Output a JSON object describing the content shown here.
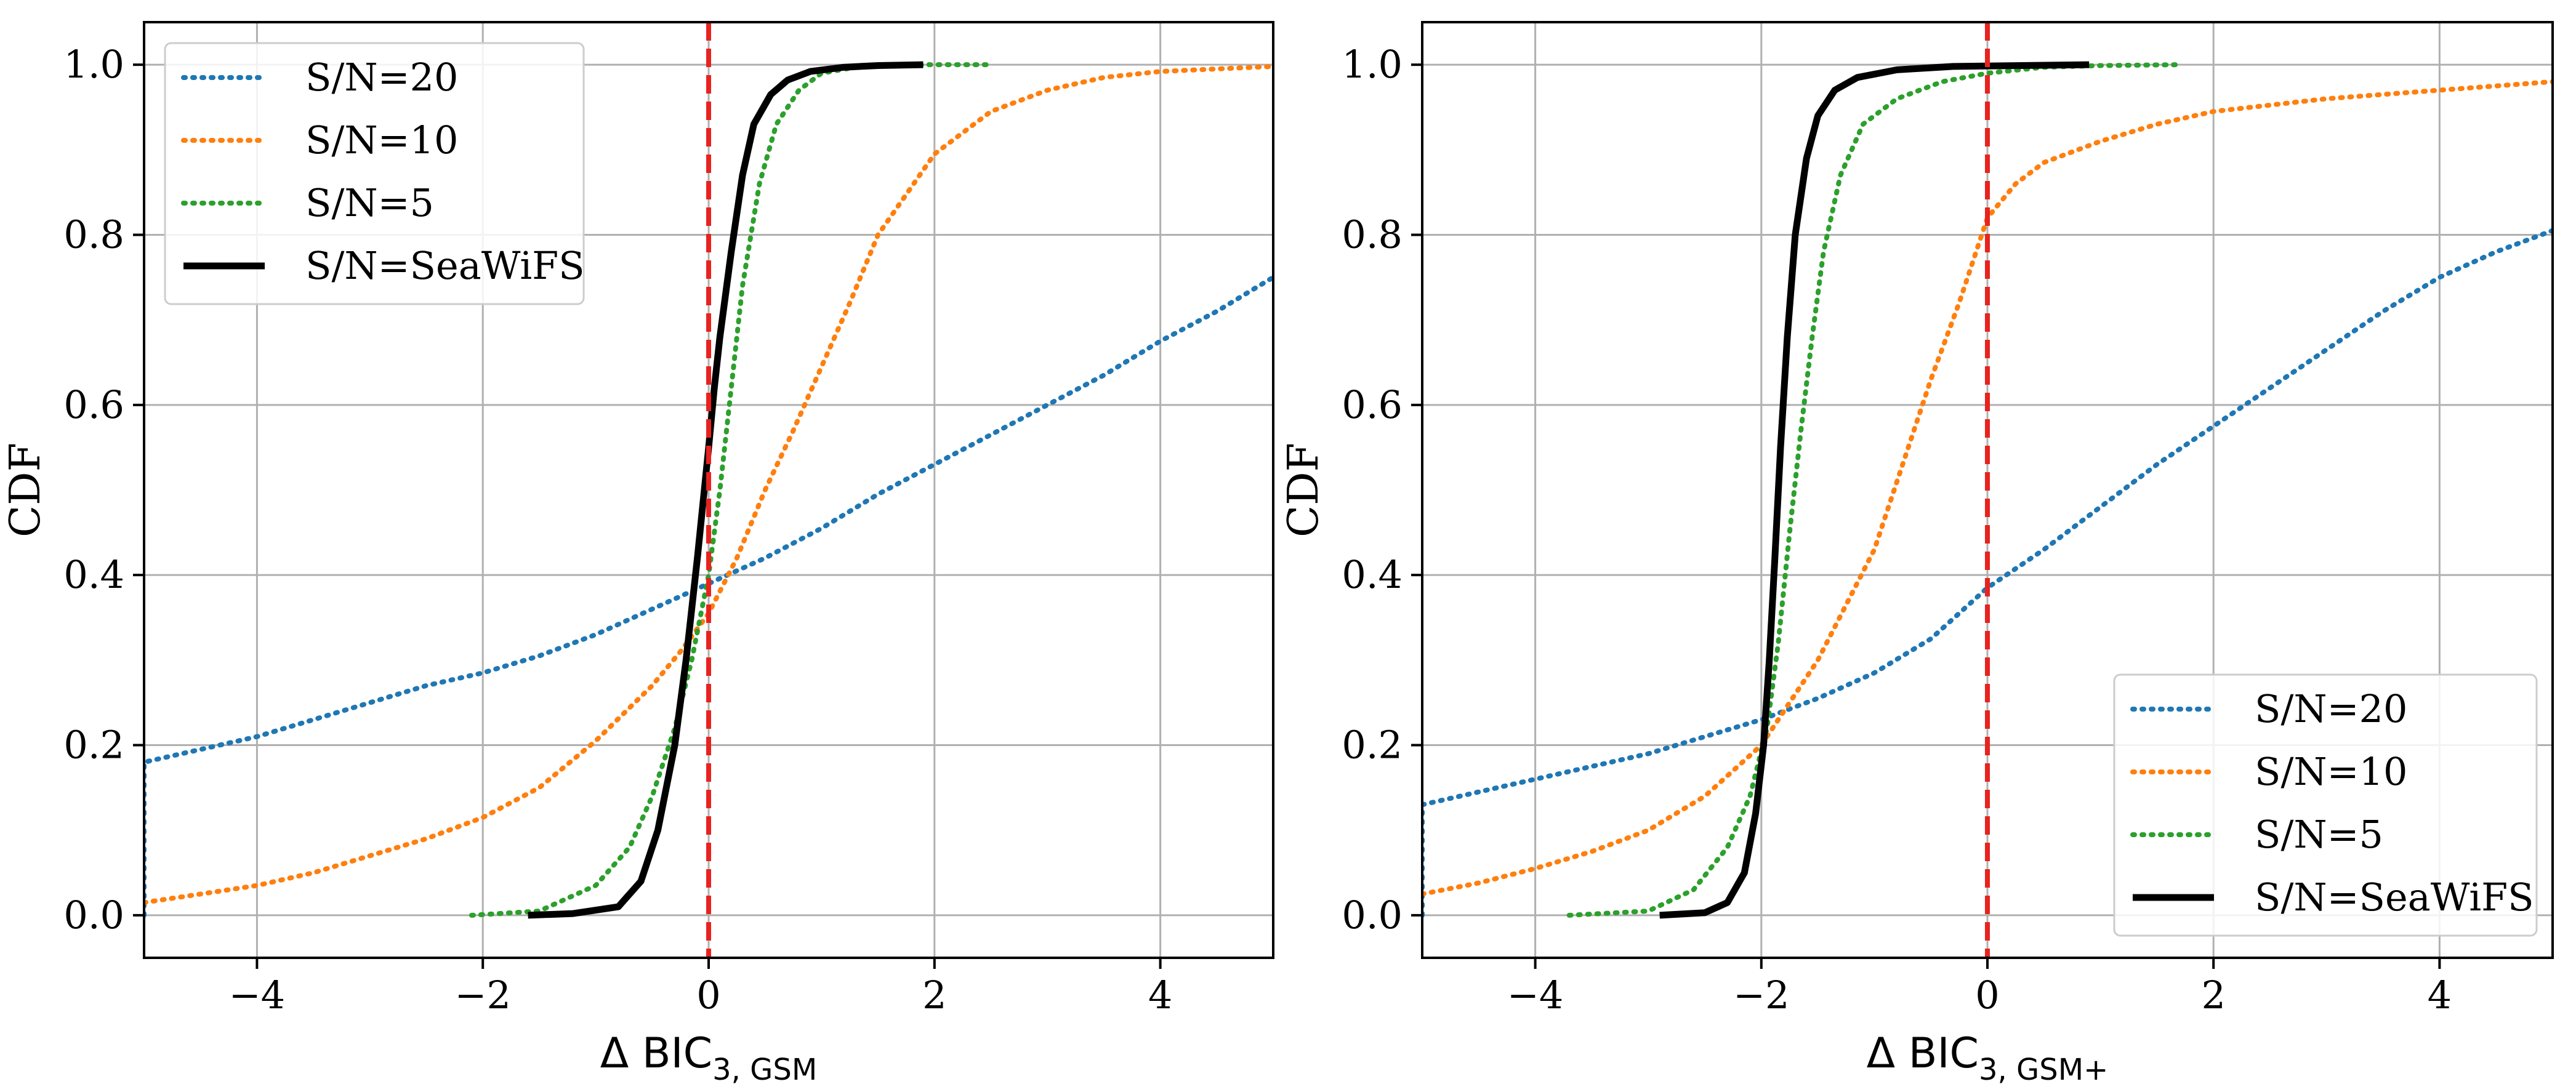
{
  "chart_data": [
    {
      "type": "line",
      "ylabel": "CDF",
      "xlabel_main": "Δ BIC",
      "xlabel_sub": "3, GSM",
      "xlim": [
        -5,
        5
      ],
      "ylim": [
        -0.05,
        1.05
      ],
      "x_ticks": [
        -4,
        -2,
        0,
        2,
        4
      ],
      "x_tick_labels": [
        "−4",
        "−2",
        "0",
        "2",
        "4"
      ],
      "y_ticks": [
        0.0,
        0.2,
        0.4,
        0.6,
        0.8,
        1.0
      ],
      "y_tick_labels": [
        "0.0",
        "0.2",
        "0.4",
        "0.6",
        "0.8",
        "1.0"
      ],
      "grid": true,
      "legend_position": "upper-left",
      "vline": {
        "x": 0,
        "color": "#e8231f",
        "style": "dashed"
      },
      "series": [
        {
          "name": "S/N=20",
          "color": "#1f77b4",
          "style": "dotted",
          "points": [
            [
              -5,
              0.0
            ],
            [
              -5,
              0.18
            ],
            [
              -4.5,
              0.195
            ],
            [
              -4,
              0.21
            ],
            [
              -3.5,
              0.23
            ],
            [
              -3,
              0.25
            ],
            [
              -2.5,
              0.27
            ],
            [
              -2,
              0.285
            ],
            [
              -1.5,
              0.305
            ],
            [
              -1,
              0.33
            ],
            [
              -0.5,
              0.36
            ],
            [
              0,
              0.39
            ],
            [
              0.5,
              0.42
            ],
            [
              1,
              0.455
            ],
            [
              1.5,
              0.495
            ],
            [
              2,
              0.53
            ],
            [
              2.5,
              0.565
            ],
            [
              3,
              0.6
            ],
            [
              3.5,
              0.635
            ],
            [
              4,
              0.675
            ],
            [
              4.5,
              0.71
            ],
            [
              5,
              0.75
            ]
          ]
        },
        {
          "name": "S/N=10",
          "color": "#ff7f0e",
          "style": "dotted",
          "points": [
            [
              -5,
              0.015
            ],
            [
              -4.5,
              0.025
            ],
            [
              -4,
              0.035
            ],
            [
              -3.5,
              0.05
            ],
            [
              -3,
              0.07
            ],
            [
              -2.5,
              0.09
            ],
            [
              -2,
              0.115
            ],
            [
              -1.5,
              0.15
            ],
            [
              -1,
              0.205
            ],
            [
              -0.5,
              0.27
            ],
            [
              -0.25,
              0.31
            ],
            [
              0,
              0.355
            ],
            [
              0.25,
              0.42
            ],
            [
              0.5,
              0.5
            ],
            [
              0.75,
              0.57
            ],
            [
              1,
              0.645
            ],
            [
              1.25,
              0.72
            ],
            [
              1.5,
              0.8
            ],
            [
              2,
              0.895
            ],
            [
              2.5,
              0.945
            ],
            [
              3,
              0.97
            ],
            [
              3.5,
              0.985
            ],
            [
              4,
              0.992
            ],
            [
              5,
              0.998
            ]
          ]
        },
        {
          "name": "S/N=5",
          "color": "#2ca02c",
          "style": "dotted",
          "points": [
            [
              -2.1,
              0.0
            ],
            [
              -1.5,
              0.005
            ],
            [
              -1.0,
              0.035
            ],
            [
              -0.7,
              0.08
            ],
            [
              -0.5,
              0.14
            ],
            [
              -0.3,
              0.22
            ],
            [
              -0.15,
              0.3
            ],
            [
              0,
              0.4
            ],
            [
              0.1,
              0.5
            ],
            [
              0.2,
              0.62
            ],
            [
              0.3,
              0.74
            ],
            [
              0.45,
              0.86
            ],
            [
              0.6,
              0.93
            ],
            [
              0.8,
              0.97
            ],
            [
              1.0,
              0.99
            ],
            [
              1.3,
              0.997
            ],
            [
              1.9,
              1.0
            ],
            [
              2.5,
              1.0
            ]
          ]
        },
        {
          "name": "S/N=SeaWiFS",
          "color": "#000000",
          "style": "solid",
          "points": [
            [
              -1.6,
              0.0
            ],
            [
              -1.2,
              0.002
            ],
            [
              -0.8,
              0.01
            ],
            [
              -0.6,
              0.04
            ],
            [
              -0.45,
              0.1
            ],
            [
              -0.3,
              0.2
            ],
            [
              -0.2,
              0.3
            ],
            [
              -0.1,
              0.42
            ],
            [
              0,
              0.55
            ],
            [
              0.05,
              0.62
            ],
            [
              0.1,
              0.68
            ],
            [
              0.2,
              0.78
            ],
            [
              0.3,
              0.87
            ],
            [
              0.4,
              0.93
            ],
            [
              0.55,
              0.965
            ],
            [
              0.7,
              0.982
            ],
            [
              0.9,
              0.992
            ],
            [
              1.2,
              0.997
            ],
            [
              1.5,
              0.999
            ],
            [
              1.9,
              1.0
            ]
          ]
        }
      ]
    },
    {
      "type": "line",
      "ylabel": "CDF",
      "xlabel_main": "Δ BIC",
      "xlabel_sub": "3, GSM+",
      "xlim": [
        -5,
        5
      ],
      "ylim": [
        -0.05,
        1.05
      ],
      "x_ticks": [
        -4,
        -2,
        0,
        2,
        4
      ],
      "x_tick_labels": [
        "−4",
        "−2",
        "0",
        "2",
        "4"
      ],
      "y_ticks": [
        0.0,
        0.2,
        0.4,
        0.6,
        0.8,
        1.0
      ],
      "y_tick_labels": [
        "0.0",
        "0.2",
        "0.4",
        "0.6",
        "0.8",
        "1.0"
      ],
      "grid": true,
      "legend_position": "lower-right",
      "vline": {
        "x": 0,
        "color": "#e8231f",
        "style": "dashed"
      },
      "series": [
        {
          "name": "S/N=20",
          "color": "#1f77b4",
          "style": "dotted",
          "points": [
            [
              -5,
              0.0
            ],
            [
              -5,
              0.13
            ],
            [
              -4.5,
              0.145
            ],
            [
              -4,
              0.16
            ],
            [
              -3.5,
              0.175
            ],
            [
              -3,
              0.19
            ],
            [
              -2.5,
              0.21
            ],
            [
              -2,
              0.23
            ],
            [
              -1.5,
              0.255
            ],
            [
              -1,
              0.285
            ],
            [
              -0.5,
              0.325
            ],
            [
              0,
              0.385
            ],
            [
              0.5,
              0.43
            ],
            [
              1,
              0.48
            ],
            [
              1.5,
              0.53
            ],
            [
              2,
              0.575
            ],
            [
              2.5,
              0.62
            ],
            [
              3,
              0.665
            ],
            [
              3.5,
              0.71
            ],
            [
              4,
              0.75
            ],
            [
              4.5,
              0.78
            ],
            [
              5,
              0.805
            ]
          ]
        },
        {
          "name": "S/N=10",
          "color": "#ff7f0e",
          "style": "dotted",
          "points": [
            [
              -5,
              0.025
            ],
            [
              -4.5,
              0.038
            ],
            [
              -4,
              0.055
            ],
            [
              -3.5,
              0.075
            ],
            [
              -3,
              0.1
            ],
            [
              -2.5,
              0.14
            ],
            [
              -2,
              0.2
            ],
            [
              -1.5,
              0.3
            ],
            [
              -1,
              0.43
            ],
            [
              -0.75,
              0.53
            ],
            [
              -0.5,
              0.63
            ],
            [
              -0.25,
              0.72
            ],
            [
              0,
              0.82
            ],
            [
              0.25,
              0.86
            ],
            [
              0.5,
              0.885
            ],
            [
              1,
              0.91
            ],
            [
              1.5,
              0.93
            ],
            [
              2,
              0.945
            ],
            [
              3,
              0.96
            ],
            [
              4,
              0.97
            ],
            [
              5,
              0.98
            ]
          ]
        },
        {
          "name": "S/N=5",
          "color": "#2ca02c",
          "style": "dotted",
          "points": [
            [
              -3.7,
              0.0
            ],
            [
              -3.0,
              0.005
            ],
            [
              -2.6,
              0.03
            ],
            [
              -2.3,
              0.08
            ],
            [
              -2.1,
              0.14
            ],
            [
              -1.95,
              0.22
            ],
            [
              -1.85,
              0.32
            ],
            [
              -1.75,
              0.45
            ],
            [
              -1.65,
              0.57
            ],
            [
              -1.55,
              0.68
            ],
            [
              -1.45,
              0.78
            ],
            [
              -1.3,
              0.87
            ],
            [
              -1.1,
              0.93
            ],
            [
              -0.8,
              0.96
            ],
            [
              -0.4,
              0.98
            ],
            [
              0,
              0.99
            ],
            [
              0.5,
              0.997
            ],
            [
              1.0,
              0.999
            ],
            [
              1.7,
              1.0
            ]
          ]
        },
        {
          "name": "S/N=SeaWiFS",
          "color": "#000000",
          "style": "solid",
          "points": [
            [
              -2.9,
              0.0
            ],
            [
              -2.5,
              0.003
            ],
            [
              -2.3,
              0.015
            ],
            [
              -2.15,
              0.05
            ],
            [
              -2.05,
              0.12
            ],
            [
              -1.98,
              0.2
            ],
            [
              -1.93,
              0.3
            ],
            [
              -1.88,
              0.42
            ],
            [
              -1.83,
              0.55
            ],
            [
              -1.77,
              0.68
            ],
            [
              -1.7,
              0.8
            ],
            [
              -1.6,
              0.89
            ],
            [
              -1.5,
              0.94
            ],
            [
              -1.35,
              0.97
            ],
            [
              -1.15,
              0.985
            ],
            [
              -0.8,
              0.994
            ],
            [
              -0.3,
              0.998
            ],
            [
              0.3,
              0.999
            ],
            [
              0.9,
              1.0
            ]
          ]
        }
      ]
    }
  ]
}
